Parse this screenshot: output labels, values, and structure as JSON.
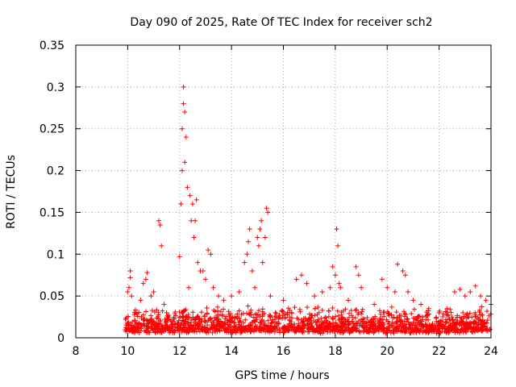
{
  "chart_data": {
    "type": "scatter",
    "title": "Day 090 of 2025, Rate Of TEC Index for receiver sch2",
    "xlabel": "GPS time / hours",
    "ylabel": "ROTI / TECUs",
    "xlim": [
      8,
      24
    ],
    "ylim": [
      0,
      0.35
    ],
    "grid": true,
    "marker": "+",
    "color": "#ff0000",
    "x_ticks": [
      8,
      10,
      12,
      14,
      16,
      18,
      20,
      22,
      24
    ],
    "x_tick_labels": [
      "8",
      "10",
      "12",
      "14",
      "16",
      "18",
      "20",
      "22",
      "24"
    ],
    "y_ticks": [
      0,
      0.05,
      0.1,
      0.15,
      0.2,
      0.25,
      0.3,
      0.35
    ],
    "y_tick_labels": [
      "0",
      "0.05",
      "0.1",
      "0.15",
      "0.2",
      "0.25",
      "0.3",
      "0.35"
    ],
    "background_band": {
      "x_start": 9.9,
      "x_end": 24,
      "y_min": 0.005,
      "y_max": 0.035
    },
    "series": [
      {
        "name": "ROTI",
        "points": [
          [
            10.0,
            0.055
          ],
          [
            10.05,
            0.06
          ],
          [
            10.1,
            0.072
          ],
          [
            10.1,
            0.08
          ],
          [
            10.15,
            0.05
          ],
          [
            10.5,
            0.045
          ],
          [
            10.6,
            0.065
          ],
          [
            10.7,
            0.07
          ],
          [
            10.75,
            0.078
          ],
          [
            10.9,
            0.05
          ],
          [
            11.0,
            0.055
          ],
          [
            11.2,
            0.14
          ],
          [
            11.25,
            0.135
          ],
          [
            11.3,
            0.11
          ],
          [
            11.4,
            0.04
          ],
          [
            12.0,
            0.097
          ],
          [
            12.05,
            0.16
          ],
          [
            12.1,
            0.2
          ],
          [
            12.1,
            0.25
          ],
          [
            12.15,
            0.28
          ],
          [
            12.15,
            0.3
          ],
          [
            12.2,
            0.27
          ],
          [
            12.2,
            0.21
          ],
          [
            12.25,
            0.24
          ],
          [
            12.3,
            0.18
          ],
          [
            12.35,
            0.06
          ],
          [
            12.4,
            0.17
          ],
          [
            12.45,
            0.14
          ],
          [
            12.5,
            0.16
          ],
          [
            12.55,
            0.12
          ],
          [
            12.6,
            0.14
          ],
          [
            12.65,
            0.165
          ],
          [
            12.7,
            0.09
          ],
          [
            12.8,
            0.08
          ],
          [
            12.9,
            0.08
          ],
          [
            13.0,
            0.07
          ],
          [
            13.1,
            0.105
          ],
          [
            13.2,
            0.1
          ],
          [
            13.3,
            0.06
          ],
          [
            13.5,
            0.05
          ],
          [
            13.7,
            0.045
          ],
          [
            14.0,
            0.05
          ],
          [
            14.3,
            0.055
          ],
          [
            14.5,
            0.09
          ],
          [
            14.6,
            0.1
          ],
          [
            14.65,
            0.115
          ],
          [
            14.7,
            0.13
          ],
          [
            14.8,
            0.08
          ],
          [
            14.9,
            0.06
          ],
          [
            15.0,
            0.12
          ],
          [
            15.05,
            0.11
          ],
          [
            15.1,
            0.13
          ],
          [
            15.15,
            0.14
          ],
          [
            15.2,
            0.09
          ],
          [
            15.3,
            0.12
          ],
          [
            15.35,
            0.155
          ],
          [
            15.4,
            0.15
          ],
          [
            15.5,
            0.05
          ],
          [
            16.0,
            0.045
          ],
          [
            16.5,
            0.07
          ],
          [
            16.7,
            0.075
          ],
          [
            16.9,
            0.065
          ],
          [
            17.2,
            0.05
          ],
          [
            17.5,
            0.055
          ],
          [
            17.8,
            0.06
          ],
          [
            17.9,
            0.085
          ],
          [
            18.0,
            0.075
          ],
          [
            18.05,
            0.13
          ],
          [
            18.1,
            0.11
          ],
          [
            18.15,
            0.065
          ],
          [
            18.2,
            0.06
          ],
          [
            18.5,
            0.045
          ],
          [
            18.8,
            0.085
          ],
          [
            18.9,
            0.075
          ],
          [
            19.0,
            0.06
          ],
          [
            19.5,
            0.04
          ],
          [
            19.8,
            0.07
          ],
          [
            20.0,
            0.06
          ],
          [
            20.3,
            0.055
          ],
          [
            20.4,
            0.088
          ],
          [
            20.6,
            0.08
          ],
          [
            20.7,
            0.075
          ],
          [
            20.8,
            0.055
          ],
          [
            21.0,
            0.045
          ],
          [
            21.3,
            0.04
          ],
          [
            21.6,
            0.035
          ],
          [
            22.0,
            0.03
          ],
          [
            22.3,
            0.035
          ],
          [
            22.6,
            0.055
          ],
          [
            22.8,
            0.058
          ],
          [
            23.0,
            0.05
          ],
          [
            23.2,
            0.055
          ],
          [
            23.4,
            0.062
          ],
          [
            23.6,
            0.05
          ],
          [
            23.8,
            0.045
          ],
          [
            24.0,
            0.04
          ]
        ]
      }
    ]
  }
}
